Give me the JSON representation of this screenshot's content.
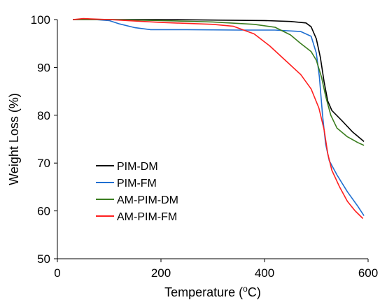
{
  "chart_data": {
    "type": "line",
    "xlabel": "Temperature (",
    "xlabel_sup": "o",
    "xlabel_suffix": "C)",
    "ylabel": "Weight Loss (%)",
    "xlim": [
      0,
      600
    ],
    "ylim": [
      50,
      100
    ],
    "xticks": [
      "0",
      "200",
      "400",
      "600"
    ],
    "yticks": [
      "50",
      "60",
      "70",
      "80",
      "90",
      "100"
    ],
    "grid": false,
    "legend_position": "bottom-left",
    "series": [
      {
        "name": "PIM-DM",
        "color": "#000000",
        "points": [
          [
            30,
            100.0
          ],
          [
            100,
            100.0
          ],
          [
            200,
            100.0
          ],
          [
            300,
            99.9
          ],
          [
            400,
            99.8
          ],
          [
            450,
            99.6
          ],
          [
            480,
            99.3
          ],
          [
            490,
            98.5
          ],
          [
            500,
            96.0
          ],
          [
            508,
            92.0
          ],
          [
            515,
            87.0
          ],
          [
            522,
            83.0
          ],
          [
            530,
            81.0
          ],
          [
            550,
            78.8
          ],
          [
            570,
            76.5
          ],
          [
            592,
            74.5
          ]
        ]
      },
      {
        "name": "PIM-FM",
        "color": "#1f6fd1",
        "points": [
          [
            30,
            100.0
          ],
          [
            60,
            100.1
          ],
          [
            100,
            99.8
          ],
          [
            120,
            99.1
          ],
          [
            150,
            98.3
          ],
          [
            180,
            97.9
          ],
          [
            250,
            97.9
          ],
          [
            350,
            97.8
          ],
          [
            420,
            97.8
          ],
          [
            470,
            97.5
          ],
          [
            490,
            96.5
          ],
          [
            500,
            93.0
          ],
          [
            506,
            88.0
          ],
          [
            512,
            80.0
          ],
          [
            518,
            74.0
          ],
          [
            525,
            70.5
          ],
          [
            540,
            67.5
          ],
          [
            560,
            64.0
          ],
          [
            580,
            61.0
          ],
          [
            592,
            59.0
          ]
        ]
      },
      {
        "name": "AM-PIM-DM",
        "color": "#3a7d1e",
        "points": [
          [
            30,
            100.0
          ],
          [
            100,
            100.0
          ],
          [
            200,
            99.8
          ],
          [
            300,
            99.5
          ],
          [
            380,
            99.0
          ],
          [
            420,
            98.4
          ],
          [
            450,
            96.8
          ],
          [
            470,
            95.0
          ],
          [
            490,
            93.3
          ],
          [
            500,
            91.5
          ],
          [
            510,
            88.0
          ],
          [
            518,
            84.0
          ],
          [
            528,
            80.0
          ],
          [
            540,
            77.3
          ],
          [
            560,
            75.5
          ],
          [
            580,
            74.3
          ],
          [
            592,
            73.7
          ]
        ]
      },
      {
        "name": "AM-PIM-FM",
        "color": "#ff1f1f",
        "points": [
          [
            30,
            100.0
          ],
          [
            50,
            100.2
          ],
          [
            100,
            100.0
          ],
          [
            150,
            99.7
          ],
          [
            200,
            99.4
          ],
          [
            300,
            99.0
          ],
          [
            340,
            98.6
          ],
          [
            380,
            97.0
          ],
          [
            410,
            94.5
          ],
          [
            440,
            91.5
          ],
          [
            470,
            88.5
          ],
          [
            490,
            85.5
          ],
          [
            505,
            81.5
          ],
          [
            515,
            77.0
          ],
          [
            522,
            72.0
          ],
          [
            530,
            68.5
          ],
          [
            545,
            65.0
          ],
          [
            560,
            62.0
          ],
          [
            575,
            60.0
          ],
          [
            590,
            58.4
          ]
        ]
      }
    ]
  }
}
